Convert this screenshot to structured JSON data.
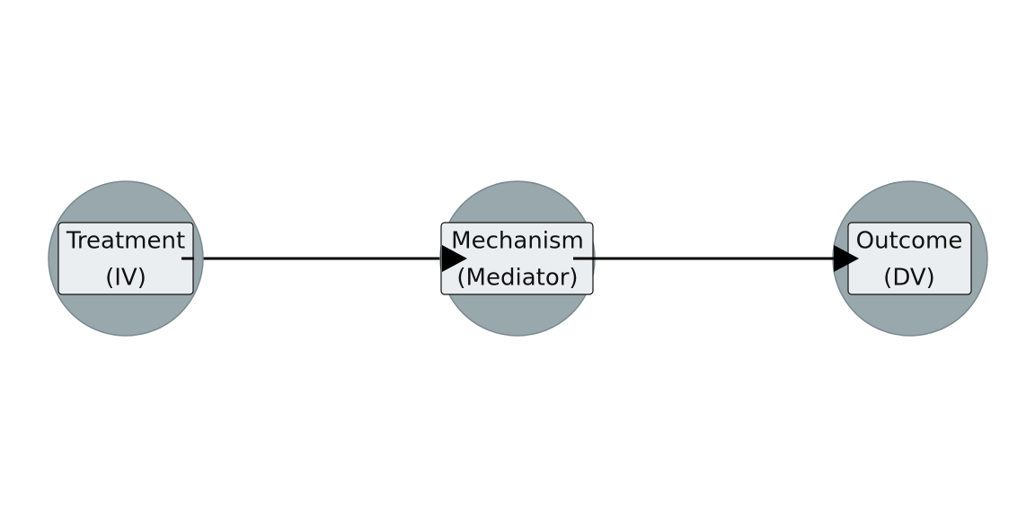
{
  "nodes": [
    {
      "id": "treatment",
      "line1": "Treatment",
      "line2": "(IV)"
    },
    {
      "id": "mechanism",
      "line1": "Mechanism",
      "line2": "(Mediator)"
    },
    {
      "id": "outcome",
      "line1": "Outcome",
      "line2": "(DV)"
    }
  ],
  "edges": [
    {
      "from": "treatment",
      "to": "mechanism"
    },
    {
      "from": "mechanism",
      "to": "outcome"
    }
  ],
  "colors": {
    "node_circle": "#99a8ad",
    "node_box": "#ebeef0",
    "edge": "#000000"
  }
}
